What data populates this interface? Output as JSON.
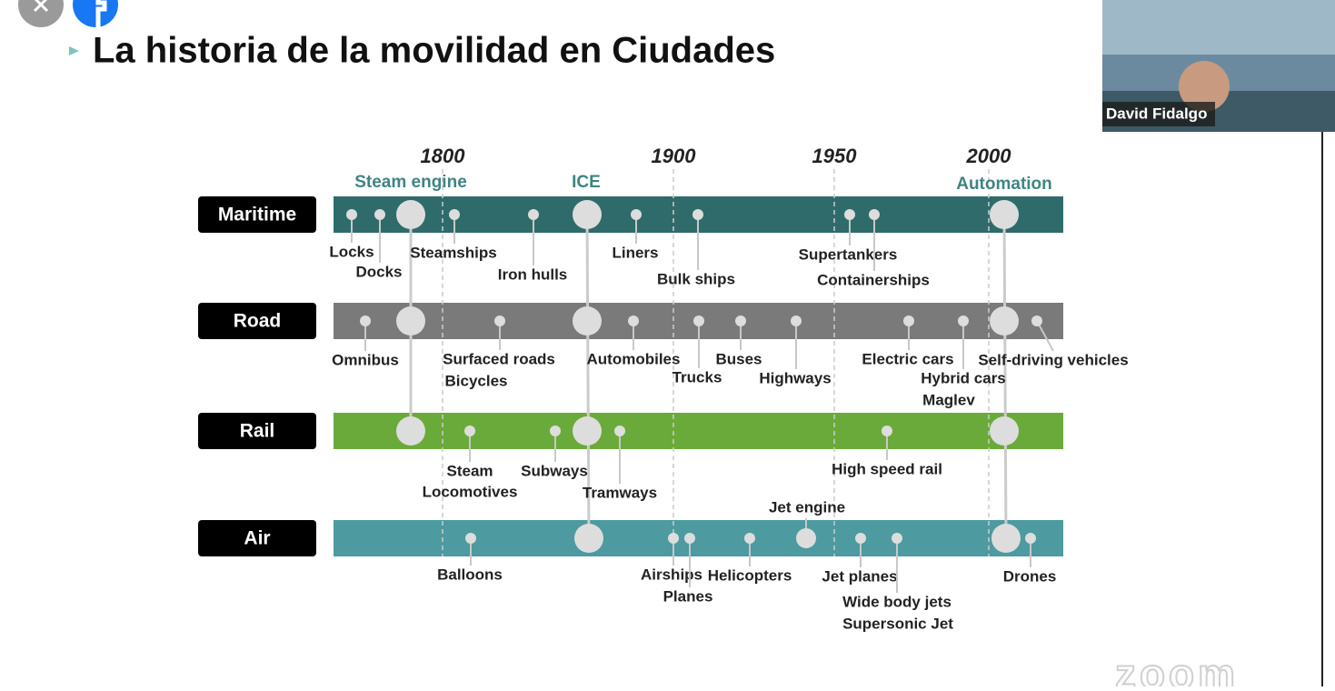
{
  "header": {
    "title": "La historia de la movilidad en Ciudades"
  },
  "participant": {
    "name": "David Fidalgo"
  },
  "watermark": "zoom",
  "timeline": {
    "years": [
      "1800",
      "1900",
      "1950",
      "2000"
    ],
    "technologies": [
      "Steam engine",
      "ICE",
      "Automation"
    ],
    "rows": [
      {
        "name": "Maritime",
        "events": [
          "Locks",
          "Docks",
          "Steamships",
          "Iron hulls",
          "Liners",
          "Bulk ships",
          "Supertankers",
          "Containerships"
        ]
      },
      {
        "name": "Road",
        "events": [
          "Omnibus",
          "Surfaced roads",
          "Bicycles",
          "Automobiles",
          "Trucks",
          "Buses",
          "Highways",
          "Electric cars",
          "Hybrid cars",
          "Maglev",
          "Self-driving vehicles"
        ]
      },
      {
        "name": "Rail",
        "events": [
          "Steam",
          "Locomotives",
          "Subways",
          "Tramways",
          "High speed rail"
        ]
      },
      {
        "name": "Air",
        "events": [
          "Balloons",
          "Airships",
          "Planes",
          "Helicopters",
          "Jet engine",
          "Jet planes",
          "Wide body jets",
          "Supersonic Jet",
          "Drones"
        ]
      }
    ]
  }
}
